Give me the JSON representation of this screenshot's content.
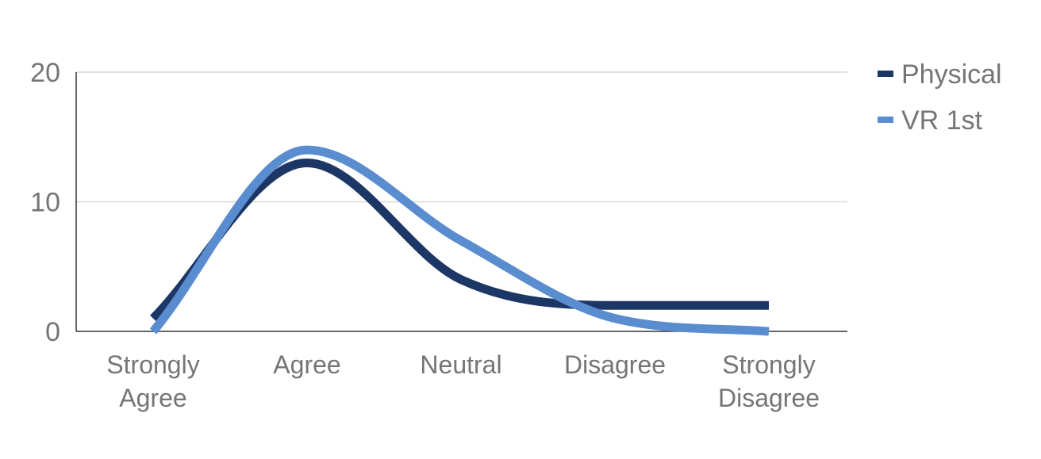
{
  "chart_data": {
    "type": "line",
    "categories": [
      "Strongly Agree",
      "Agree",
      "Neutral",
      "Disagree",
      "Strongly Disagree"
    ],
    "category_lines": [
      [
        "Strongly",
        "Agree"
      ],
      [
        "Agree"
      ],
      [
        "Neutral"
      ],
      [
        "Disagree"
      ],
      [
        "Strongly",
        "Disagree"
      ]
    ],
    "series": [
      {
        "name": "Physical",
        "values": [
          1,
          13,
          4,
          2,
          2
        ],
        "color": "#1c3766"
      },
      {
        "name": "VR 1st",
        "values": [
          0,
          14,
          7,
          1,
          0
        ],
        "color": "#5a8dcf"
      }
    ],
    "ylim": [
      0,
      20
    ],
    "yticks": [
      "0",
      "10",
      "20"
    ],
    "ytick_values": [
      0,
      10,
      20
    ],
    "smooth": true,
    "grid": true,
    "legend": "right",
    "axis_color": "#333333",
    "grid_color": "#d9d9d9",
    "label_color": "#757575"
  }
}
